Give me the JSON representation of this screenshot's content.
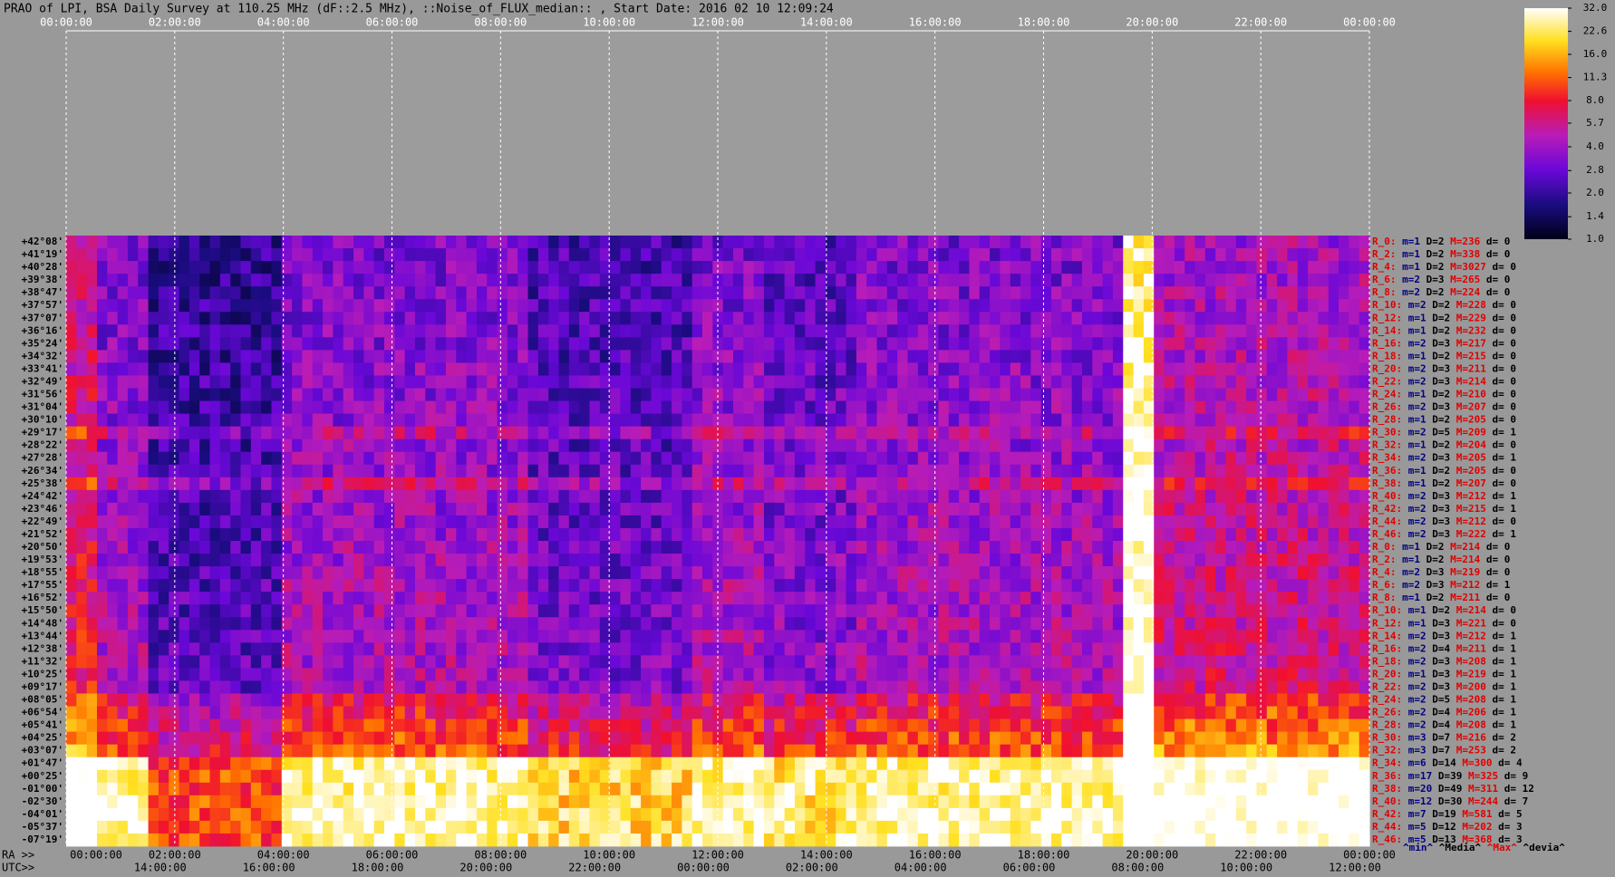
{
  "header": {
    "title": "PRAO of LPI, BSA Daily Survey at 110.25 MHz (dF::2.5 MHz), ::Noise_of_FLUX_median:: , Start Date: 2016 02 10 12:09:24"
  },
  "top_axis": [
    "00:00:00",
    "02:00:00",
    "04:00:00",
    "06:00:00",
    "08:00:00",
    "10:00:00",
    "12:00:00",
    "14:00:00",
    "16:00:00",
    "18:00:00",
    "20:00:00",
    "22:00:00",
    "00:00:00"
  ],
  "ra_axis": {
    "label": "RA >>",
    "ticks": [
      "00:00:00",
      "02:00:00",
      "04:00:00",
      "06:00:00",
      "08:00:00",
      "10:00:00",
      "12:00:00",
      "14:00:00",
      "16:00:00",
      "18:00:00",
      "20:00:00",
      "22:00:00",
      "00:00:00"
    ]
  },
  "utc_axis": {
    "label": "UTC>>",
    "ticks": [
      "14:00:00",
      "16:00:00",
      "18:00:00",
      "20:00:00",
      "22:00:00",
      "00:00:00",
      "02:00:00",
      "04:00:00",
      "06:00:00",
      "08:00:00",
      "10:00:00",
      "12:00:00"
    ]
  },
  "declinations": [
    "+42°08'",
    "+41°19'",
    "+40°28'",
    "+39°38'",
    "+38°47'",
    "+37°57'",
    "+37°07'",
    "+36°16'",
    "+35°24'",
    "+34°32'",
    "+33°41'",
    "+32°49'",
    "+31°56'",
    "+31°04'",
    "+30°10'",
    "+29°17'",
    "+28°22'",
    "+27°28'",
    "+26°34'",
    "+25°38'",
    "+24°42'",
    "+23°46'",
    "+22°49'",
    "+21°52'",
    "+20°50'",
    "+19°53'",
    "+18°55'",
    "+17°55'",
    "+16°52'",
    "+15°50'",
    "+14°48'",
    "+13°44'",
    "+12°38'",
    "+11°32'",
    "+10°25'",
    "+09°17'",
    "+08°05'",
    "+06°54'",
    "+05°41'",
    "+04°25'",
    "+03°07'",
    "+01°47'",
    "+00°25'",
    "-01°00'",
    "-02°30'",
    "-04°01'",
    "-05°37'",
    "-07°19'"
  ],
  "row_stats": [
    [
      "R_0:",
      "m=1",
      "D=2",
      "M=236",
      "d= 0"
    ],
    [
      "R_2:",
      "m=1",
      "D=2",
      "M=338",
      "d= 0"
    ],
    [
      "R_4:",
      "m=1",
      "D=2",
      "M=3027",
      "d= 0"
    ],
    [
      "R_6:",
      "m=2",
      "D=3",
      "M=265",
      "d= 0"
    ],
    [
      "R_8:",
      "m=2",
      "D=2",
      "M=224",
      "d= 0"
    ],
    [
      "R_10:",
      "m=2",
      "D=2",
      "M=228",
      "d= 0"
    ],
    [
      "R_12:",
      "m=1",
      "D=2",
      "M=229",
      "d= 0"
    ],
    [
      "R_14:",
      "m=1",
      "D=2",
      "M=232",
      "d= 0"
    ],
    [
      "R_16:",
      "m=2",
      "D=3",
      "M=217",
      "d= 0"
    ],
    [
      "R_18:",
      "m=1",
      "D=2",
      "M=215",
      "d= 0"
    ],
    [
      "R_20:",
      "m=2",
      "D=3",
      "M=211",
      "d= 0"
    ],
    [
      "R_22:",
      "m=2",
      "D=3",
      "M=214",
      "d= 0"
    ],
    [
      "R_24:",
      "m=1",
      "D=2",
      "M=210",
      "d= 0"
    ],
    [
      "R_26:",
      "m=2",
      "D=3",
      "M=207",
      "d= 0"
    ],
    [
      "R_28:",
      "m=1",
      "D=2",
      "M=205",
      "d= 0"
    ],
    [
      "R_30:",
      "m=2",
      "D=5",
      "M=209",
      "d= 1"
    ],
    [
      "R_32:",
      "m=1",
      "D=2",
      "M=204",
      "d= 0"
    ],
    [
      "R_34:",
      "m=2",
      "D=3",
      "M=205",
      "d= 1"
    ],
    [
      "R_36:",
      "m=1",
      "D=2",
      "M=205",
      "d= 0"
    ],
    [
      "R_38:",
      "m=1",
      "D=2",
      "M=207",
      "d= 0"
    ],
    [
      "R_40:",
      "m=2",
      "D=3",
      "M=212",
      "d= 1"
    ],
    [
      "R_42:",
      "m=2",
      "D=3",
      "M=215",
      "d= 1"
    ],
    [
      "R_44:",
      "m=2",
      "D=3",
      "M=212",
      "d= 0"
    ],
    [
      "R_46:",
      "m=2",
      "D=3",
      "M=222",
      "d= 1"
    ],
    [
      "R_0:",
      "m=1",
      "D=2",
      "M=214",
      "d= 0"
    ],
    [
      "R_2:",
      "m=1",
      "D=2",
      "M=214",
      "d= 0"
    ],
    [
      "R_4:",
      "m=2",
      "D=3",
      "M=219",
      "d= 0"
    ],
    [
      "R_6:",
      "m=2",
      "D=3",
      "M=212",
      "d= 1"
    ],
    [
      "R_8:",
      "m=1",
      "D=2",
      "M=211",
      "d= 0"
    ],
    [
      "R_10:",
      "m=1",
      "D=2",
      "M=214",
      "d= 0"
    ],
    [
      "R_12:",
      "m=1",
      "D=3",
      "M=221",
      "d= 0"
    ],
    [
      "R_14:",
      "m=2",
      "D=3",
      "M=212",
      "d= 1"
    ],
    [
      "R_16:",
      "m=2",
      "D=4",
      "M=211",
      "d= 1"
    ],
    [
      "R_18:",
      "m=2",
      "D=3",
      "M=208",
      "d= 1"
    ],
    [
      "R_20:",
      "m=1",
      "D=3",
      "M=219",
      "d= 1"
    ],
    [
      "R_22:",
      "m=2",
      "D=3",
      "M=200",
      "d= 1"
    ],
    [
      "R_24:",
      "m=2",
      "D=5",
      "M=208",
      "d= 1"
    ],
    [
      "R_26:",
      "m=2",
      "D=4",
      "M=206",
      "d= 1"
    ],
    [
      "R_28:",
      "m=2",
      "D=4",
      "M=208",
      "d= 1"
    ],
    [
      "R_30:",
      "m=3",
      "D=7",
      "M=216",
      "d= 2"
    ],
    [
      "R_32:",
      "m=3",
      "D=7",
      "M=253",
      "d= 2"
    ],
    [
      "R_34:",
      "m=6",
      "D=14",
      "M=300",
      "d= 4"
    ],
    [
      "R_36:",
      "m=17",
      "D=39",
      "M=325",
      "d= 9"
    ],
    [
      "R_38:",
      "m=20",
      "D=49",
      "M=311",
      "d= 12"
    ],
    [
      "R_40:",
      "m=12",
      "D=30",
      "M=244",
      "d= 7"
    ],
    [
      "R_42:",
      "m=7",
      "D=19",
      "M=581",
      "d= 5"
    ],
    [
      "R_44:",
      "m=5",
      "D=12",
      "M=202",
      "d= 3"
    ],
    [
      "R_46:",
      "m=5",
      "D=13",
      "M=368",
      "d= 3"
    ]
  ],
  "stats_legend": [
    "^min^",
    "^Media^",
    "^Max^",
    "^devia^"
  ],
  "colorbar": {
    "scale": "log",
    "lim": [
      1,
      32
    ],
    "ticks": [
      {
        "value": 32,
        "label": "32.0"
      },
      {
        "value": 22.6,
        "label": "22.6"
      },
      {
        "value": 16,
        "label": "16.0"
      },
      {
        "value": 11.3,
        "label": "11.3"
      },
      {
        "value": 8,
        "label": "8.0"
      },
      {
        "value": 5.7,
        "label": "5.7"
      },
      {
        "value": 4,
        "label": "4.0"
      },
      {
        "value": 2.8,
        "label": "2.8"
      },
      {
        "value": 2,
        "label": "2.0"
      },
      {
        "value": 1.4,
        "label": "1.4"
      },
      {
        "value": 1,
        "label": "1.0"
      }
    ]
  }
}
